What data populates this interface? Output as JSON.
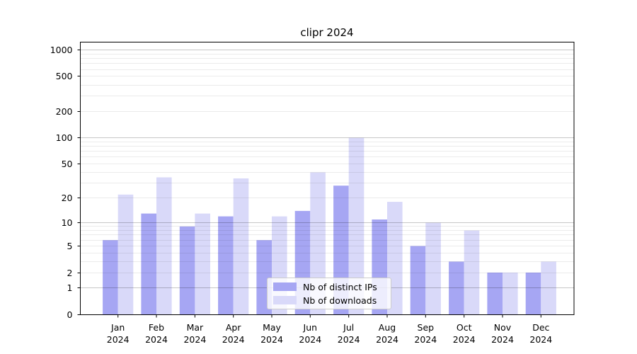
{
  "title": "clipr 2024",
  "chart_data": {
    "type": "bar",
    "title": "clipr 2024",
    "categories": [
      "Jan 2024",
      "Feb 2024",
      "Mar 2024",
      "Apr 2024",
      "May 2024",
      "Jun 2024",
      "Jul 2024",
      "Aug 2024",
      "Sep 2024",
      "Oct 2024",
      "Nov 2024",
      "Dec 2024"
    ],
    "series": [
      {
        "name": "Nb of distinct IPs",
        "color": "#a6a6f3",
        "values": [
          6,
          13,
          9,
          12,
          6,
          14,
          28,
          11,
          5,
          3,
          2,
          2
        ]
      },
      {
        "name": "Nb of downloads",
        "color": "#d9d9f9",
        "values": [
          22,
          35,
          13,
          34,
          12,
          40,
          100,
          18,
          10,
          8,
          2,
          3
        ]
      }
    ],
    "yscale": "log1p",
    "ylim": [
      0,
      1250
    ],
    "ytick_values": [
      0,
      1,
      2,
      5,
      10,
      20,
      50,
      100,
      200,
      500,
      1000
    ],
    "ytick_labels": [
      "0",
      "1",
      "2",
      "5",
      "10",
      "20",
      "50",
      "100",
      "200",
      "500",
      "1000"
    ],
    "grid": true,
    "grid_major_values": [
      1,
      10,
      100,
      1000
    ],
    "legend_position": "lower center",
    "xlabel": "",
    "ylabel": ""
  },
  "legend": {
    "items": [
      {
        "label": "Nb of distinct IPs",
        "color": "#a6a6f3"
      },
      {
        "label": "Nb of downloads",
        "color": "#d9d9f9"
      }
    ]
  }
}
